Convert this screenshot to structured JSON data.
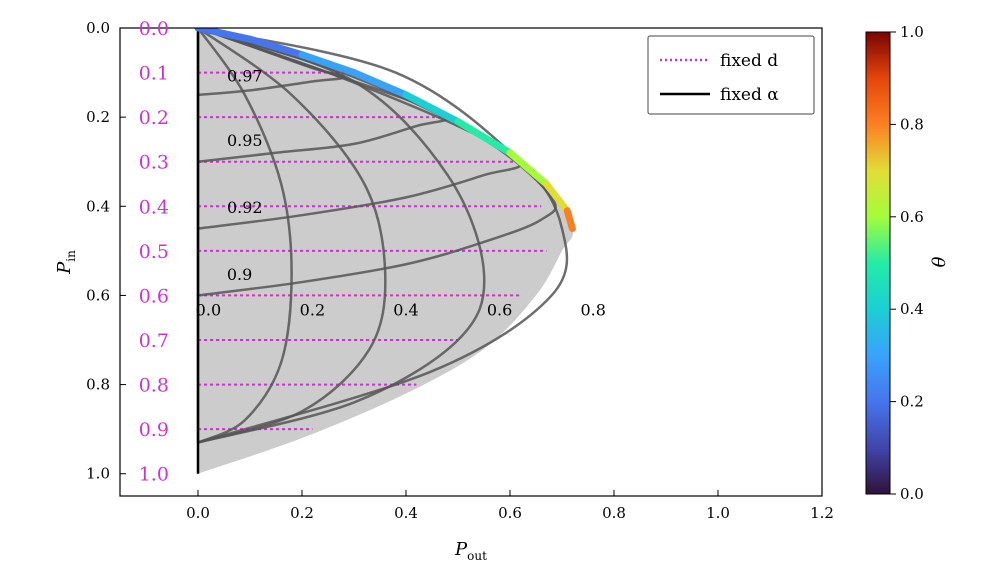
{
  "chart_data": {
    "type": "line",
    "title": "",
    "xlabel": "P_out",
    "ylabel": "P_in",
    "xlim": [
      -0.15,
      1.2
    ],
    "ylim": [
      0.0,
      1.05
    ],
    "y_inverted": true,
    "grid": false,
    "x_ticks": [
      0.0,
      0.2,
      0.4,
      0.6,
      0.8,
      1.0,
      1.2
    ],
    "y_ticks": [
      0.0,
      0.2,
      0.4,
      0.6,
      0.8,
      1.0
    ],
    "legend": {
      "position": "top-right",
      "entries": [
        {
          "label": "fixed d",
          "style": "dotted",
          "color": "#cc33cc"
        },
        {
          "label": "fixed α",
          "style": "solid",
          "color": "#000000"
        }
      ]
    },
    "fixed_d_labels": [
      "0.0",
      "0.1",
      "0.2",
      "0.3",
      "0.4",
      "0.5",
      "0.6",
      "0.7",
      "0.8",
      "0.9",
      "1.0"
    ],
    "fixed_d_levels": [
      0.0,
      0.1,
      0.2,
      0.3,
      0.4,
      0.5,
      0.6,
      0.7,
      0.8,
      0.9,
      1.0
    ],
    "envelope": {
      "outer": [
        [
          0.0,
          0.0
        ],
        [
          0.1,
          0.025
        ],
        [
          0.2,
          0.06
        ],
        [
          0.3,
          0.1
        ],
        [
          0.4,
          0.15
        ],
        [
          0.5,
          0.21
        ],
        [
          0.6,
          0.28
        ],
        [
          0.67,
          0.35
        ],
        [
          0.72,
          0.45
        ],
        [
          0.7,
          0.5
        ],
        [
          0.65,
          0.6
        ],
        [
          0.55,
          0.72
        ],
        [
          0.4,
          0.82
        ],
        [
          0.2,
          0.92
        ],
        [
          0.0,
          1.0
        ]
      ]
    },
    "boundary_curve": {
      "colorbar_var": "θ",
      "points": [
        [
          0.0,
          0.0,
          0.15
        ],
        [
          0.1,
          0.025,
          0.2
        ],
        [
          0.2,
          0.06,
          0.25
        ],
        [
          0.3,
          0.1,
          0.3
        ],
        [
          0.4,
          0.15,
          0.35
        ],
        [
          0.5,
          0.21,
          0.42
        ],
        [
          0.6,
          0.28,
          0.52
        ],
        [
          0.67,
          0.35,
          0.62
        ],
        [
          0.71,
          0.41,
          0.72
        ],
        [
          0.72,
          0.45,
          0.8
        ]
      ]
    },
    "fixed_alpha_curves": [
      {
        "label": "0.0",
        "points": [
          [
            0.0,
            0.0
          ],
          [
            0.0,
            0.93
          ]
        ]
      },
      {
        "label": "0.2",
        "points": [
          [
            0.0,
            0.0
          ],
          [
            0.09,
            0.15
          ],
          [
            0.16,
            0.35
          ],
          [
            0.18,
            0.55
          ],
          [
            0.16,
            0.75
          ],
          [
            0.09,
            0.88
          ],
          [
            0.0,
            0.93
          ]
        ]
      },
      {
        "label": "0.4",
        "points": [
          [
            0.0,
            0.0
          ],
          [
            0.18,
            0.15
          ],
          [
            0.32,
            0.35
          ],
          [
            0.36,
            0.55
          ],
          [
            0.33,
            0.72
          ],
          [
            0.2,
            0.86
          ],
          [
            0.0,
            0.93
          ]
        ]
      },
      {
        "label": "0.6",
        "points": [
          [
            0.0,
            0.0
          ],
          [
            0.3,
            0.12
          ],
          [
            0.48,
            0.33
          ],
          [
            0.55,
            0.55
          ],
          [
            0.5,
            0.7
          ],
          [
            0.3,
            0.84
          ],
          [
            0.0,
            0.93
          ]
        ]
      },
      {
        "label": "0.8",
        "points": [
          [
            0.0,
            0.0
          ],
          [
            0.38,
            0.1
          ],
          [
            0.62,
            0.3
          ],
          [
            0.7,
            0.45
          ],
          [
            0.68,
            0.6
          ],
          [
            0.45,
            0.77
          ],
          [
            0.0,
            0.93
          ]
        ]
      }
    ],
    "fixed_alpha_inner_curves": [
      {
        "label": "0.97",
        "points": [
          [
            0.0,
            0.15
          ],
          [
            0.1,
            0.14
          ],
          [
            0.22,
            0.12
          ],
          [
            0.28,
            0.11
          ],
          [
            0.22,
            0.09
          ],
          [
            0.1,
            0.04
          ],
          [
            0.0,
            0.0
          ]
        ]
      },
      {
        "label": "0.95",
        "points": [
          [
            0.0,
            0.3
          ],
          [
            0.15,
            0.28
          ],
          [
            0.3,
            0.26
          ],
          [
            0.42,
            0.22
          ],
          [
            0.48,
            0.2
          ],
          [
            0.4,
            0.16
          ],
          [
            0.2,
            0.08
          ],
          [
            0.0,
            0.0
          ]
        ]
      },
      {
        "label": "0.92",
        "points": [
          [
            0.0,
            0.45
          ],
          [
            0.2,
            0.42
          ],
          [
            0.4,
            0.38
          ],
          [
            0.55,
            0.33
          ],
          [
            0.62,
            0.3
          ],
          [
            0.5,
            0.22
          ],
          [
            0.25,
            0.1
          ],
          [
            0.0,
            0.0
          ]
        ]
      },
      {
        "label": "0.9",
        "points": [
          [
            0.0,
            0.6
          ],
          [
            0.2,
            0.57
          ],
          [
            0.4,
            0.53
          ],
          [
            0.55,
            0.48
          ],
          [
            0.66,
            0.43
          ],
          [
            0.68,
            0.38
          ],
          [
            0.55,
            0.25
          ],
          [
            0.3,
            0.11
          ],
          [
            0.0,
            0.0
          ]
        ]
      }
    ],
    "colorbar": {
      "label": "θ",
      "range": [
        0.0,
        1.0
      ],
      "ticks": [
        "0.0",
        "0.2",
        "0.4",
        "0.6",
        "0.8",
        "1.0"
      ]
    },
    "alpha_label_text": [
      "0.0",
      "0.2",
      "0.4",
      "0.6",
      "0.8"
    ],
    "inner_label_text": [
      "0.97",
      "0.95",
      "0.92",
      "0.9"
    ]
  }
}
